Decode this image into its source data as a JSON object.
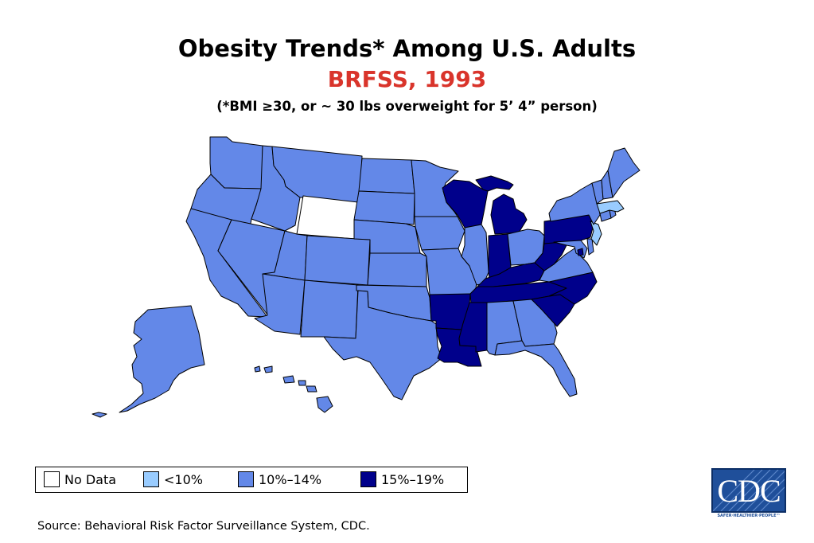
{
  "header": {
    "title": "Obesity Trends* Among U.S. Adults",
    "subtitle": "BRFSS, 1993",
    "note": "(*BMI ≥30, or ~ 30 lbs overweight for 5’ 4” person)"
  },
  "colors": {
    "no_data": "#ffffff",
    "lt10": "#99ccff",
    "p10_14": "#6388e8",
    "p15_19": "#00008b",
    "title_red": "#d9342b",
    "border": "#000000"
  },
  "legend": [
    {
      "key": "no_data",
      "label": "No Data",
      "color": "#ffffff"
    },
    {
      "key": "lt10",
      "label": "<10%",
      "color": "#99ccff"
    },
    {
      "key": "p10_14",
      "label": "10%–14%",
      "color": "#6388e8"
    },
    {
      "key": "p15_19",
      "label": "15%–19%",
      "color": "#00008b"
    }
  ],
  "states": {
    "WA": "p10_14",
    "OR": "p10_14",
    "CA": "p10_14",
    "NV": "p10_14",
    "ID": "p10_14",
    "MT": "p10_14",
    "WY": "no_data",
    "UT": "p10_14",
    "AZ": "p10_14",
    "CO": "p10_14",
    "NM": "p10_14",
    "ND": "p10_14",
    "SD": "p10_14",
    "NE": "p10_14",
    "KS": "p10_14",
    "OK": "p10_14",
    "TX": "p10_14",
    "MN": "p10_14",
    "IA": "p10_14",
    "MO": "p10_14",
    "AR": "p15_19",
    "LA": "p15_19",
    "WI": "p15_19",
    "IL": "p10_14",
    "MI": "p15_19",
    "IN": "p15_19",
    "OH": "p10_14",
    "KY": "p15_19",
    "TN": "p15_19",
    "MS": "p15_19",
    "AL": "p10_14",
    "GA": "p10_14",
    "FL": "p10_14",
    "SC": "p15_19",
    "NC": "p15_19",
    "VA": "p10_14",
    "WV": "p15_19",
    "PA": "p15_19",
    "NY": "p10_14",
    "VT": "p10_14",
    "NH": "p10_14",
    "ME": "p10_14",
    "MA": "lt10",
    "RI": "p10_14",
    "CT": "p10_14",
    "NJ": "lt10",
    "DE": "p10_14",
    "MD": "p10_14",
    "DC": "p15_19",
    "AK": "p10_14",
    "HI": "p10_14"
  },
  "source": "Source: Behavioral Risk Factor Surveillance System, CDC.",
  "logo": {
    "text": "CDC",
    "tagline": "SAFER·HEALTHIER·PEOPLE™"
  }
}
